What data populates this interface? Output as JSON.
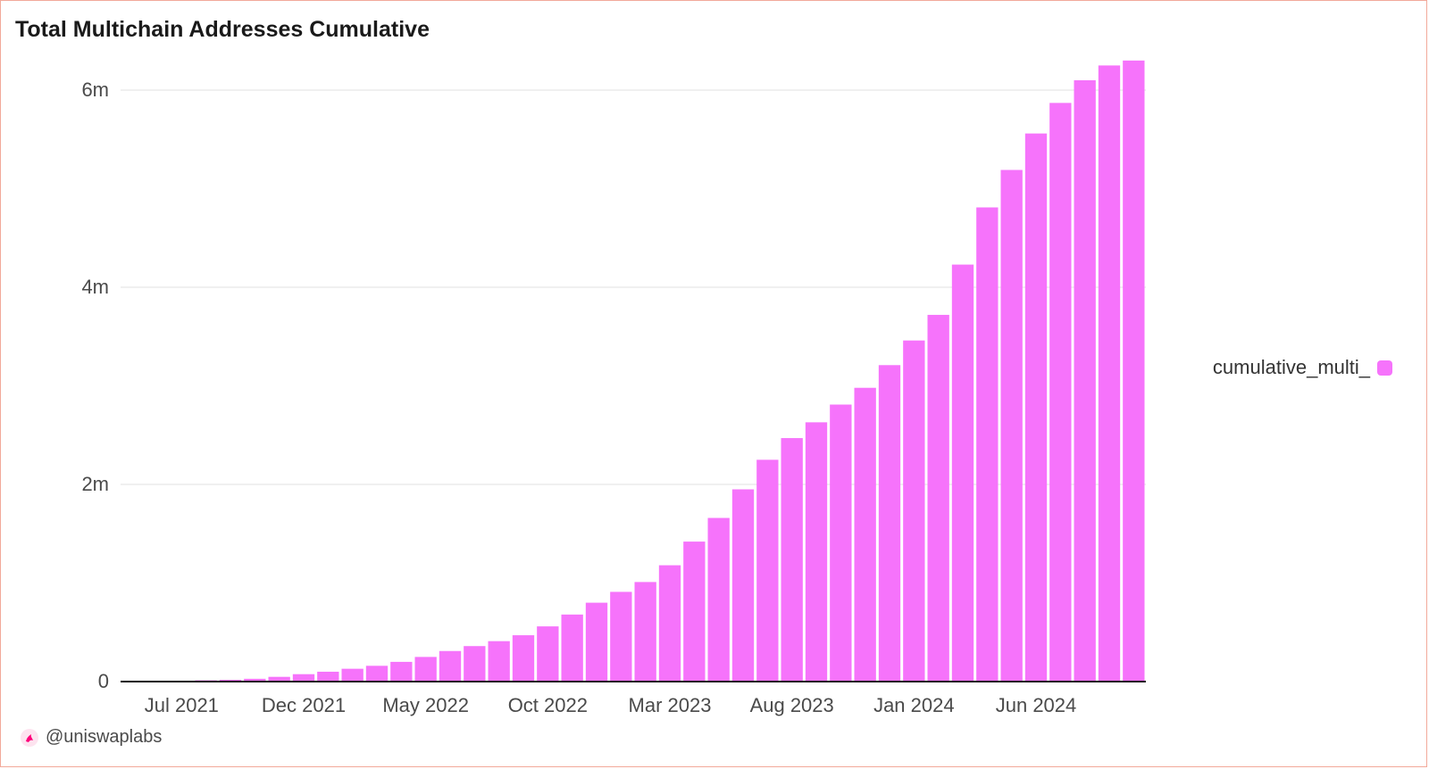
{
  "title": "Total Multichain Addresses Cumulative",
  "legend": {
    "label": "cumulative_multi_"
  },
  "watermark": {
    "text": "@uniswaplabs",
    "icon": "unicorn-icon"
  },
  "colors": {
    "bar": "#f673fb",
    "grid": "#ececec",
    "axis": "#111111",
    "text": "#4a4a4a"
  },
  "chart_data": {
    "type": "bar",
    "title": "Total Multichain Addresses Cumulative",
    "xlabel": "",
    "ylabel": "",
    "ylim": [
      0,
      6000000
    ],
    "grid": true,
    "legend_position": "right",
    "y_ticks": [
      {
        "value": 0,
        "label": "0"
      },
      {
        "value": 2000000,
        "label": "2m"
      },
      {
        "value": 4000000,
        "label": "4m"
      },
      {
        "value": 6000000,
        "label": "6m"
      }
    ],
    "x_ticks": [
      {
        "category": "2021-07",
        "label": "Jul 2021"
      },
      {
        "category": "2021-12",
        "label": "Dec 2021"
      },
      {
        "category": "2022-05",
        "label": "May 2022"
      },
      {
        "category": "2022-10",
        "label": "Oct 2022"
      },
      {
        "category": "2023-03",
        "label": "Mar 2023"
      },
      {
        "category": "2023-08",
        "label": "Aug 2023"
      },
      {
        "category": "2024-01",
        "label": "Jan 2024"
      },
      {
        "category": "2024-06",
        "label": "Jun 2024"
      }
    ],
    "categories": [
      "2021-05",
      "2021-06",
      "2021-07",
      "2021-08",
      "2021-09",
      "2021-10",
      "2021-11",
      "2021-12",
      "2022-01",
      "2022-02",
      "2022-03",
      "2022-04",
      "2022-05",
      "2022-06",
      "2022-07",
      "2022-08",
      "2022-09",
      "2022-10",
      "2022-11",
      "2022-12",
      "2023-01",
      "2023-02",
      "2023-03",
      "2023-04",
      "2023-05",
      "2023-06",
      "2023-07",
      "2023-08",
      "2023-09",
      "2023-10",
      "2023-11",
      "2023-12",
      "2024-01",
      "2024-02",
      "2024-03",
      "2024-04",
      "2024-05",
      "2024-06",
      "2024-07",
      "2024-08",
      "2024-09",
      "2024-10"
    ],
    "series": [
      {
        "name": "cumulative_multi_",
        "values": [
          1000,
          4000,
          8000,
          13000,
          18000,
          28000,
          48000,
          75000,
          100000,
          130000,
          160000,
          200000,
          250000,
          310000,
          360000,
          410000,
          470000,
          560000,
          680000,
          800000,
          910000,
          1010000,
          1180000,
          1420000,
          1660000,
          1950000,
          2250000,
          2470000,
          2630000,
          2810000,
          2980000,
          3210000,
          3460000,
          3720000,
          4230000,
          4810000,
          5190000,
          5560000,
          5870000,
          6100000,
          6250000,
          6300000
        ]
      }
    ]
  }
}
